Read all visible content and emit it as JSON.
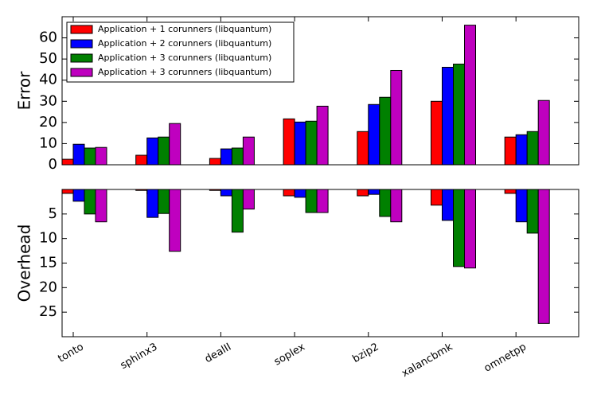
{
  "chart_data": [
    {
      "type": "bar",
      "y_label": "Error",
      "ylim": [
        0,
        70
      ],
      "yticks": [
        0,
        10,
        20,
        30,
        40,
        50,
        60
      ],
      "legend": "upper left",
      "series": [
        {
          "name": "Application + 1 corunners (libquantum)",
          "color": "#ff0000",
          "values": [
            2.6,
            4.5,
            3,
            21.7,
            15.7,
            30,
            13.1
          ]
        },
        {
          "name": "Application + 2 corunners (libquantum)",
          "color": "#0000ff",
          "values": [
            9.7,
            12.7,
            7.5,
            20.2,
            28.5,
            46.1,
            14.2
          ]
        },
        {
          "name": "Application + 3 corunners (libquantum)",
          "color": "#008000",
          "values": [
            7.9,
            13.1,
            7.9,
            20.6,
            31.9,
            47.6,
            15.7
          ]
        },
        {
          "name": "Application + 3 corunners (libquantum)",
          "color": "#bf00bf",
          "values": [
            8.2,
            19.5,
            13.1,
            27.7,
            44.6,
            66,
            30.4
          ]
        }
      ]
    },
    {
      "type": "bar",
      "y_label": "Overhead",
      "ylim": [
        0,
        30
      ],
      "yticks": [
        5,
        10,
        15,
        20,
        25
      ],
      "inverted": true,
      "categories": [
        "tonto",
        "sphinx3",
        "dealII",
        "soplex",
        "bzip2",
        "xalancbmk",
        "omnetpp"
      ],
      "series": [
        {
          "color": "#ff0000",
          "values": [
            0.8,
            0.2,
            0.2,
            1.3,
            1.3,
            3.2,
            0.8
          ]
        },
        {
          "color": "#0000ff",
          "values": [
            2.4,
            5.7,
            1.3,
            1.6,
            1,
            6.3,
            6.6
          ]
        },
        {
          "color": "#008000",
          "values": [
            5,
            4.9,
            8.7,
            4.7,
            5.5,
            15.7,
            8.9
          ]
        },
        {
          "color": "#bf00bf",
          "values": [
            6.6,
            12.6,
            4,
            4.7,
            6.6,
            16,
            27.3
          ]
        }
      ]
    }
  ]
}
